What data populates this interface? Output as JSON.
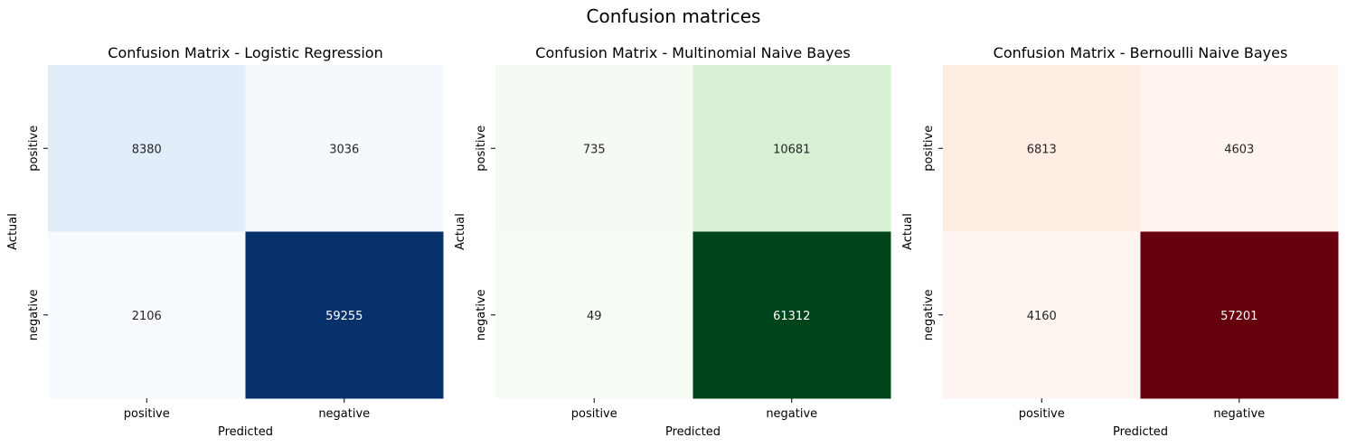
{
  "figure": {
    "suptitle": "Confusion matrices"
  },
  "chart_data": [
    {
      "type": "heatmap",
      "title": "Confusion Matrix - Logistic Regression",
      "xlabel": "Predicted",
      "ylabel": "Actual",
      "x_categories": [
        "positive",
        "negative"
      ],
      "y_categories": [
        "positive",
        "negative"
      ],
      "values": [
        [
          8380,
          3036
        ],
        [
          2106,
          59255
        ]
      ],
      "colormap": "Blues",
      "colors": [
        "#f7fbff",
        "#08306b"
      ],
      "colorbar": false
    },
    {
      "type": "heatmap",
      "title": "Confusion Matrix - Multinomial Naive Bayes",
      "xlabel": "Predicted",
      "ylabel": "Actual",
      "x_categories": [
        "positive",
        "negative"
      ],
      "y_categories": [
        "positive",
        "negative"
      ],
      "values": [
        [
          735,
          10681
        ],
        [
          49,
          61312
        ]
      ],
      "colormap": "Greens",
      "colors": [
        "#f7fcf5",
        "#00441b"
      ],
      "colorbar": false
    },
    {
      "type": "heatmap",
      "title": "Confusion Matrix - Bernoulli Naive Bayes",
      "xlabel": "Predicted",
      "ylabel": "Actual",
      "x_categories": [
        "positive",
        "negative"
      ],
      "y_categories": [
        "positive",
        "negative"
      ],
      "values": [
        [
          6813,
          4603
        ],
        [
          4160,
          57201
        ]
      ],
      "colormap": "Reds",
      "colors": [
        "#fff5f0",
        "#67000d"
      ],
      "colorbar": false
    }
  ]
}
